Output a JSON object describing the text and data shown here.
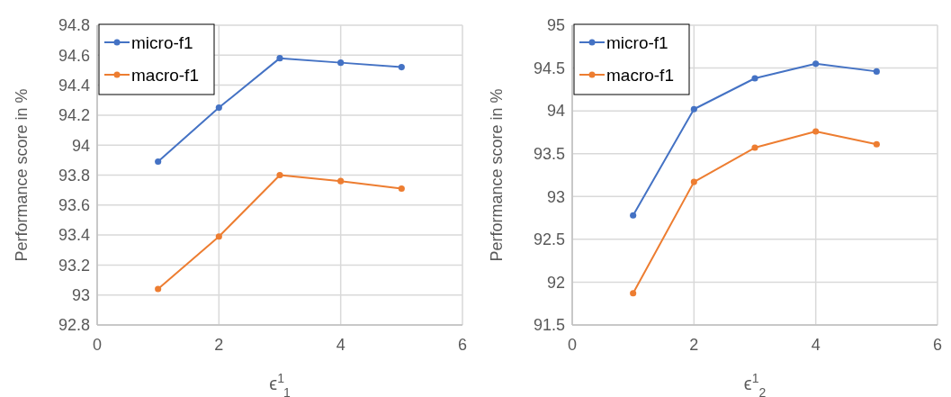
{
  "chart_data": [
    {
      "type": "line",
      "xlabel": "ϵ$^{1}$$_{1}$",
      "ylabel": "Performance score in %",
      "x": [
        1,
        2,
        3,
        4,
        5
      ],
      "series": [
        {
          "name": "micro-f1",
          "color": "#4472c4",
          "values": [
            93.89,
            94.25,
            94.58,
            94.55,
            94.52
          ]
        },
        {
          "name": "macro-f1",
          "color": "#ed7d31",
          "values": [
            93.04,
            93.39,
            93.8,
            93.76,
            93.71
          ]
        }
      ],
      "xlim": [
        0,
        6
      ],
      "xticks": [
        0,
        2,
        4,
        6
      ],
      "ylim": [
        92.8,
        94.8
      ],
      "yticks": [
        92.8,
        93,
        93.2,
        93.4,
        93.6,
        93.8,
        94,
        94.2,
        94.4,
        94.6,
        94.8
      ],
      "grid": true,
      "legend": "top left",
      "marker": "circle",
      "line_style": "solid"
    },
    {
      "type": "line",
      "xlabel": "ϵ$^{1}$$_{2}$",
      "ylabel": "Performance score in %",
      "x": [
        1,
        2,
        3,
        4,
        5
      ],
      "series": [
        {
          "name": "micro-f1",
          "color": "#4472c4",
          "values": [
            92.78,
            94.02,
            94.38,
            94.55,
            94.46
          ]
        },
        {
          "name": "macro-f1",
          "color": "#ed7d31",
          "values": [
            91.87,
            93.17,
            93.57,
            93.76,
            93.61
          ]
        }
      ],
      "xlim": [
        0,
        6
      ],
      "xticks": [
        0,
        2,
        4,
        6
      ],
      "ylim": [
        91.5,
        95
      ],
      "yticks": [
        91.5,
        92,
        92.5,
        93,
        93.5,
        94,
        94.5,
        95
      ],
      "grid": true,
      "legend": "top left",
      "marker": "circle",
      "line_style": "solid"
    }
  ]
}
